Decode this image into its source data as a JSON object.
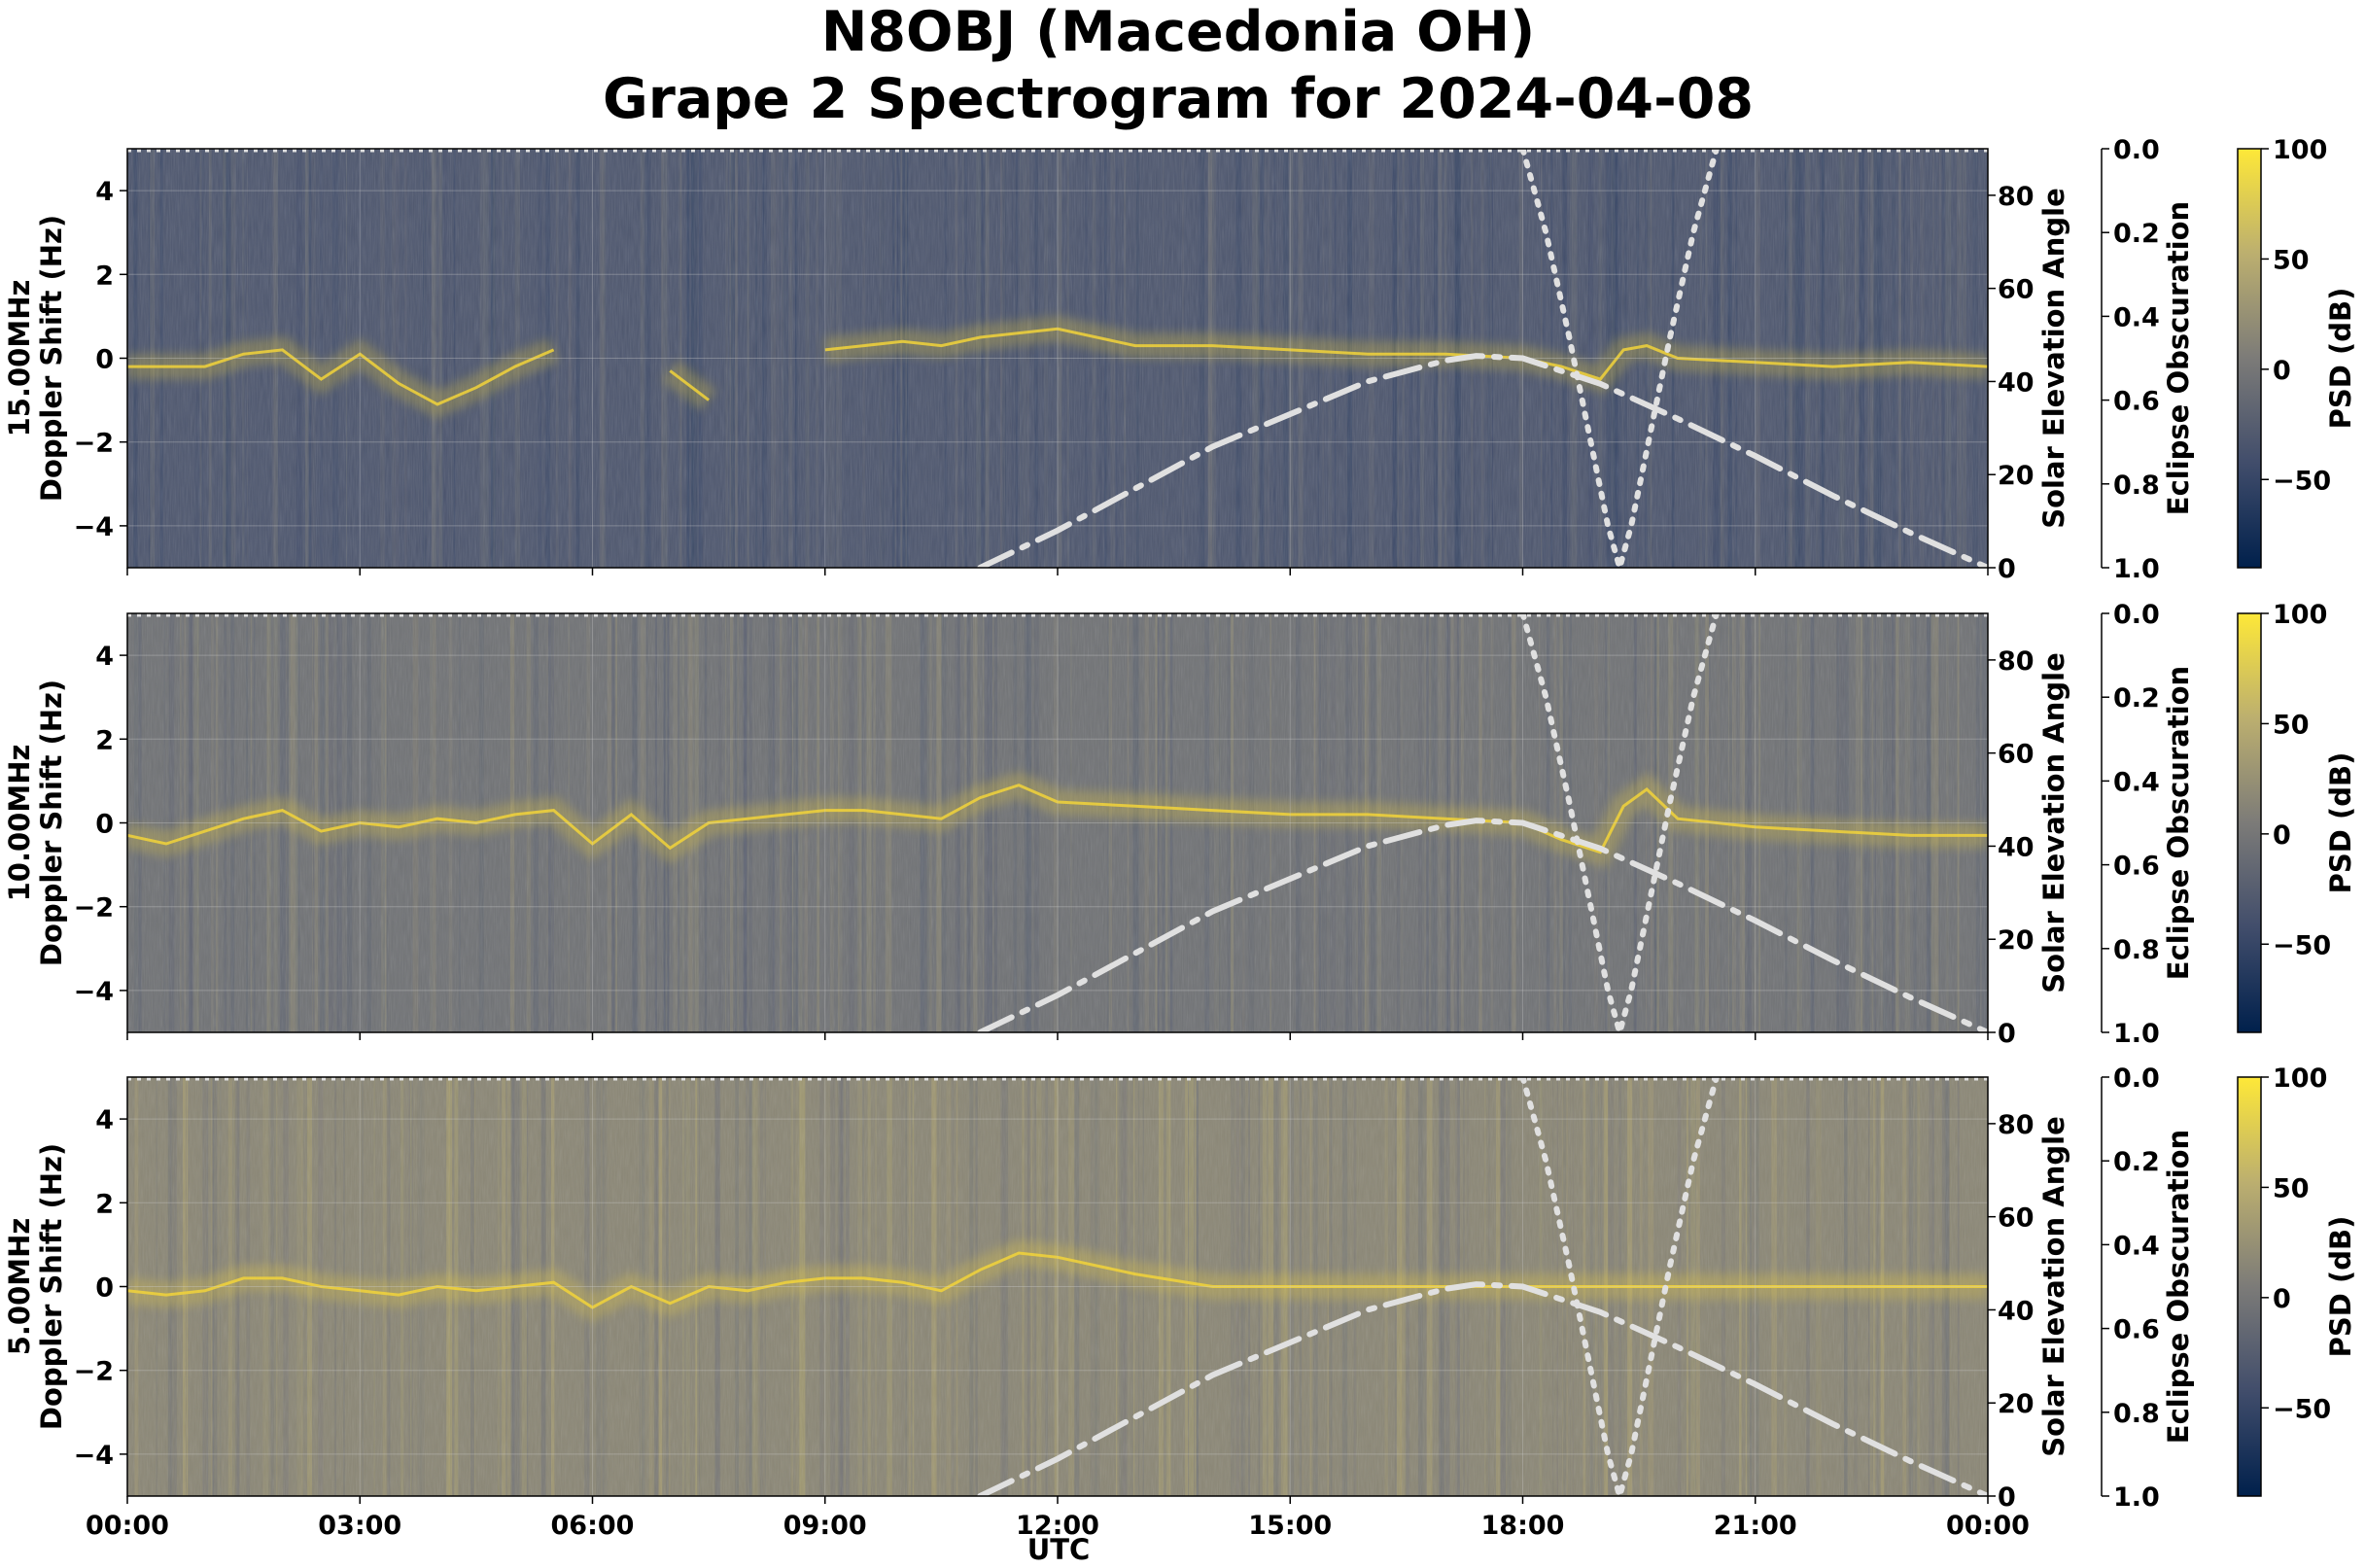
{
  "title_line1": "N8OBJ (Macedonia OH)",
  "title_line2": "Grape 2 Spectrogram for 2024-04-08",
  "colors": {
    "colormap": [
      "#00204c",
      "#414d6b",
      "#7c7b78",
      "#bcaf6f",
      "#fee838"
    ],
    "solar_curve": "#e0e0e0",
    "eclipse_curve": "#e0e0e0",
    "signal": "#f2d43a"
  },
  "chart_data": [
    {
      "type": "heatmap",
      "panel": "15.00MHz",
      "ylabel": "15.00MHz\nDoppler Shift (Hz)",
      "ylim": [
        -5,
        5
      ],
      "yticks": [
        "4",
        "2",
        "0",
        "−2",
        "−4"
      ],
      "y2label": "Solar Elevation Angle",
      "y2lim": [
        0,
        90
      ],
      "y2ticks": [
        "0",
        "20",
        "40",
        "60",
        "80"
      ],
      "y3label": "Eclipse Obscuration",
      "y3lim": [
        1.0,
        0.0
      ],
      "y3ticks": [
        "0.0",
        "0.2",
        "0.4",
        "0.6",
        "0.8",
        "1.0"
      ],
      "clabel": "PSD (dB)",
      "clim": [
        -90,
        100
      ],
      "cticks": [
        "100",
        "50",
        "0",
        "−50"
      ],
      "background_level": 0.3
    },
    {
      "type": "heatmap",
      "panel": "10.00MHz",
      "ylabel": "10.00MHz\nDoppler Shift (Hz)",
      "ylim": [
        -5,
        5
      ],
      "yticks": [
        "4",
        "2",
        "0",
        "−2",
        "−4"
      ],
      "y2label": "Solar Elevation Angle",
      "y2lim": [
        0,
        90
      ],
      "y2ticks": [
        "0",
        "20",
        "40",
        "60",
        "80"
      ],
      "y3label": "Eclipse Obscuration",
      "y3lim": [
        1.0,
        0.0
      ],
      "y3ticks": [
        "0.0",
        "0.2",
        "0.4",
        "0.6",
        "0.8",
        "1.0"
      ],
      "clabel": "PSD (dB)",
      "clim": [
        -90,
        100
      ],
      "cticks": [
        "100",
        "50",
        "0",
        "−50"
      ],
      "background_level": 0.45
    },
    {
      "type": "heatmap",
      "panel": "5.00MHz",
      "ylabel": "5.00MHz\nDoppler Shift (Hz)",
      "ylim": [
        -5,
        5
      ],
      "yticks": [
        "4",
        "2",
        "0",
        "−2",
        "−4"
      ],
      "y2label": "Solar Elevation Angle",
      "y2lim": [
        0,
        90
      ],
      "y2ticks": [
        "0",
        "20",
        "40",
        "60",
        "80"
      ],
      "y3label": "Eclipse Obscuration",
      "y3lim": [
        1.0,
        0.0
      ],
      "y3ticks": [
        "0.0",
        "0.2",
        "0.4",
        "0.6",
        "0.8",
        "1.0"
      ],
      "clabel": "PSD (dB)",
      "clim": [
        -90,
        100
      ],
      "cticks": [
        "100",
        "50",
        "0",
        "−50"
      ],
      "background_level": 0.56
    }
  ],
  "shared_x": {
    "xlabel": "UTC",
    "xticks": [
      "00:00",
      "03:00",
      "06:00",
      "09:00",
      "12:00",
      "15:00",
      "18:00",
      "21:00",
      "00:00"
    ],
    "xlim_hours": [
      0,
      24
    ]
  },
  "solar_elevation": {
    "hours": [
      11.0,
      12.0,
      13.0,
      14.0,
      15.0,
      16.0,
      17.0,
      17.4,
      18.0,
      19.0,
      20.0,
      21.0,
      22.0,
      23.0,
      24.0
    ],
    "degrees": [
      0,
      8,
      17,
      26,
      33,
      40,
      44.5,
      45.5,
      45,
      39.5,
      32,
      24,
      15.5,
      7.5,
      0
    ]
  },
  "eclipse_obscuration": {
    "hours": [
      18.0,
      18.3,
      18.6,
      18.9,
      19.1,
      19.25,
      19.4,
      19.6,
      19.9,
      20.2,
      20.5
    ],
    "values": [
      0.0,
      0.2,
      0.45,
      0.72,
      0.9,
      1.0,
      0.9,
      0.72,
      0.45,
      0.2,
      0.0
    ]
  },
  "signal_trace": [
    {
      "hours": [
        0,
        0.5,
        1,
        1.5,
        2,
        2.5,
        3,
        3.5,
        4,
        4.5,
        5,
        5.5,
        6,
        6.5,
        7,
        7.5,
        8,
        8.5,
        9,
        9.5,
        10,
        10.5,
        11,
        11.5,
        12,
        13,
        14,
        15,
        16,
        17,
        18,
        18.5,
        19,
        19.3,
        19.6,
        20,
        21,
        22,
        23,
        24
      ],
      "doppler": [
        -0.2,
        -0.2,
        -0.2,
        0.1,
        0.2,
        -0.5,
        0.1,
        -0.6,
        -1.1,
        -0.7,
        -0.2,
        0.2,
        null,
        null,
        -0.3,
        -1.0,
        null,
        null,
        0.2,
        0.3,
        0.4,
        0.3,
        0.5,
        0.6,
        0.7,
        0.3,
        0.3,
        0.2,
        0.1,
        0.1,
        0.0,
        -0.2,
        -0.5,
        0.2,
        0.3,
        0.0,
        -0.1,
        -0.2,
        -0.1,
        -0.2
      ]
    },
    {
      "hours": [
        0,
        0.5,
        1,
        1.5,
        2,
        2.5,
        3,
        3.5,
        4,
        4.5,
        5,
        5.5,
        6,
        6.5,
        7,
        7.5,
        8,
        8.5,
        9,
        9.5,
        10,
        10.5,
        11,
        11.5,
        12,
        13,
        14,
        15,
        16,
        17,
        18,
        18.5,
        19,
        19.3,
        19.6,
        20,
        21,
        22,
        23,
        24
      ],
      "doppler": [
        -0.3,
        -0.5,
        -0.2,
        0.1,
        0.3,
        -0.2,
        0.0,
        -0.1,
        0.1,
        0.0,
        0.2,
        0.3,
        -0.5,
        0.2,
        -0.6,
        0.0,
        0.1,
        0.2,
        0.3,
        0.3,
        0.2,
        0.1,
        0.6,
        0.9,
        0.5,
        0.4,
        0.3,
        0.2,
        0.2,
        0.1,
        0.0,
        -0.4,
        -0.7,
        0.4,
        0.8,
        0.1,
        -0.1,
        -0.2,
        -0.3,
        -0.3
      ]
    },
    {
      "hours": [
        0,
        0.5,
        1,
        1.5,
        2,
        2.5,
        3,
        3.5,
        4,
        4.5,
        5,
        5.5,
        6,
        6.5,
        7,
        7.5,
        8,
        8.5,
        9,
        9.5,
        10,
        10.5,
        11,
        11.5,
        12,
        12.5,
        13,
        14,
        15,
        16,
        17,
        18,
        19,
        20,
        21,
        22,
        23,
        24
      ],
      "doppler": [
        -0.1,
        -0.2,
        -0.1,
        0.2,
        0.2,
        0.0,
        -0.1,
        -0.2,
        0.0,
        -0.1,
        0.0,
        0.1,
        -0.5,
        0.0,
        -0.4,
        0.0,
        -0.1,
        0.1,
        0.2,
        0.2,
        0.1,
        -0.1,
        0.4,
        0.8,
        0.7,
        0.5,
        0.3,
        0.0,
        0.0,
        0.0,
        0.0,
        0.0,
        0.0,
        0.0,
        0.0,
        0.0,
        0.0,
        0.0
      ]
    }
  ]
}
